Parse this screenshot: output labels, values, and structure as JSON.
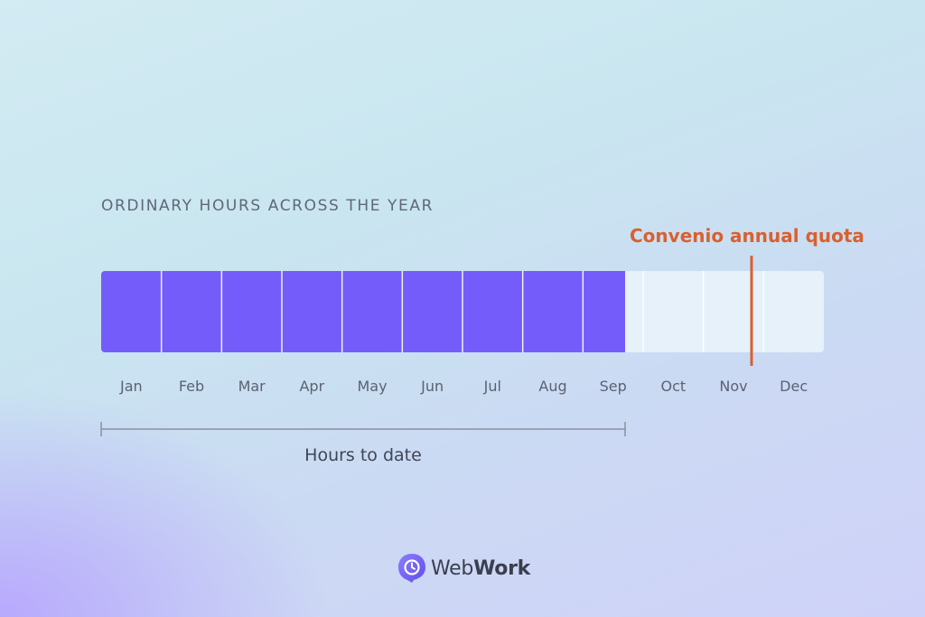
{
  "chart_data": {
    "type": "bar",
    "title": "ORDINARY HOURS ACROSS THE YEAR",
    "categories": [
      "Jan",
      "Feb",
      "Mar",
      "Apr",
      "May",
      "Jun",
      "Jul",
      "Aug",
      "Sep",
      "Oct",
      "Nov",
      "Dec"
    ],
    "progress_months": 8.7,
    "quota_marker": {
      "label": "Convenio annual quota",
      "position_months": 10.8
    },
    "bracket_label": "Hours to date",
    "colors": {
      "filled": "#745cfb",
      "remaining": "#e6f1f9",
      "quota": "#d9602f",
      "bracket": "#8a8fa0"
    }
  },
  "brand": {
    "name_light": "Web",
    "name_bold": "Work"
  }
}
